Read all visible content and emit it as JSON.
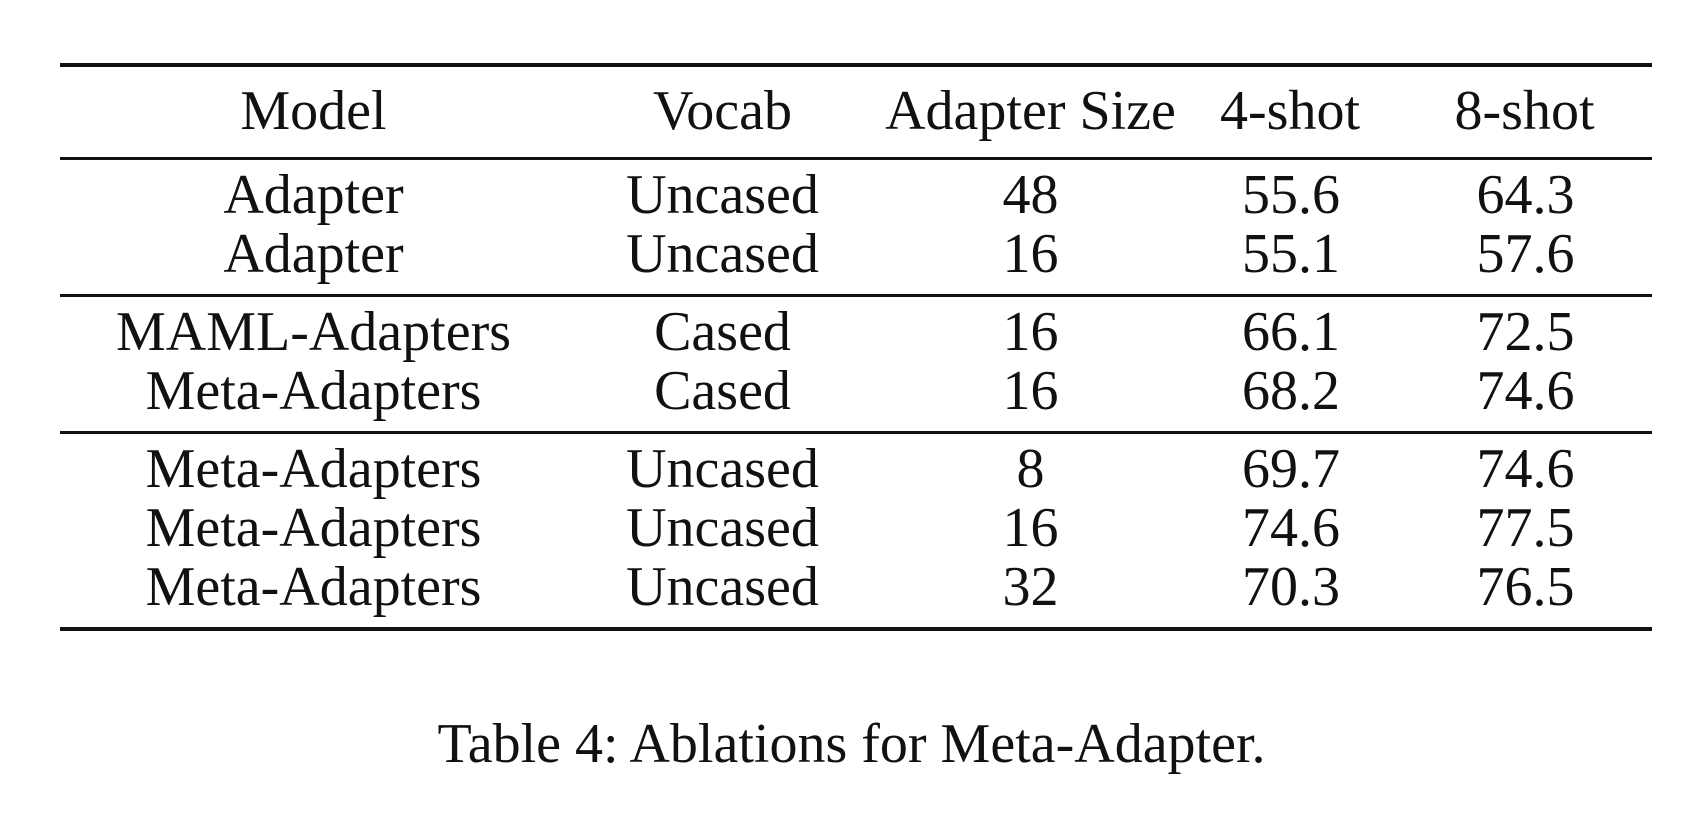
{
  "table": {
    "headers": [
      "Model",
      "Vocab",
      "Adapter Size",
      "4-shot",
      "8-shot"
    ],
    "groups": [
      {
        "rows": [
          [
            "Adapter",
            "Uncased",
            "48",
            "55.6",
            "64.3"
          ],
          [
            "Adapter",
            "Uncased",
            "16",
            "55.1",
            "57.6"
          ]
        ]
      },
      {
        "rows": [
          [
            "MAML-Adapters",
            "Cased",
            "16",
            "66.1",
            "72.5"
          ],
          [
            "Meta-Adapters",
            "Cased",
            "16",
            "68.2",
            "74.6"
          ]
        ]
      },
      {
        "rows": [
          [
            "Meta-Adapters",
            "Uncased",
            "8",
            "69.7",
            "74.6"
          ],
          [
            "Meta-Adapters",
            "Uncased",
            "16",
            "74.6",
            "77.5"
          ],
          [
            "Meta-Adapters",
            "Uncased",
            "32",
            "70.3",
            "76.5"
          ]
        ]
      }
    ]
  },
  "caption": "Table 4: Ablations for Meta-Adapter."
}
